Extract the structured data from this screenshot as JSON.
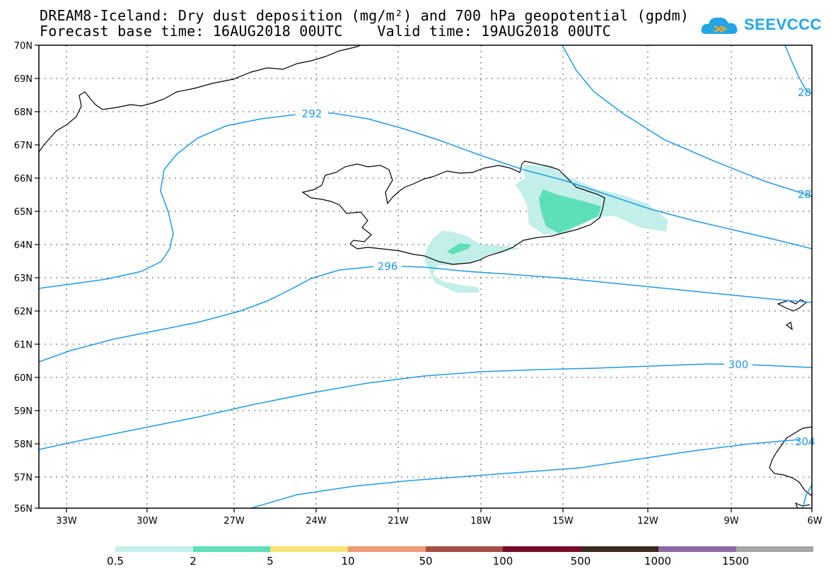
{
  "header": {
    "title_line1": "DREAM8-Iceland: Dry dust deposition (mg/m²) and 700 hPa geopotential (gpdm)",
    "title_line2": "Forecast base time: 16AUG2018 00UTC    Valid time: 19AUG2018 00UTC",
    "logo_text": "SEEVCCC"
  },
  "map": {
    "lat_labels": [
      "70N",
      "69N",
      "68N",
      "67N",
      "66N",
      "65N",
      "64N",
      "63N",
      "62N",
      "61N",
      "60N",
      "59N",
      "58N",
      "57N",
      "56N"
    ],
    "lon_labels": [
      "33W",
      "30W",
      "27W",
      "24W",
      "21W",
      "18W",
      "15W",
      "12W",
      "9W",
      "6W"
    ],
    "contour_labels": [
      "292",
      "296",
      "300",
      "28",
      "28",
      "304"
    ],
    "colors": {
      "contour": "#1e9be6",
      "dust_low": "#c2efe9",
      "dust_mid": "#5ddfb9"
    }
  },
  "colorbar": {
    "labels": [
      "0.5",
      "2",
      "5",
      "10",
      "50",
      "100",
      "500",
      "1000",
      "1500"
    ],
    "colors": [
      "#c4f0ea",
      "#5ddfb9",
      "#f9e472",
      "#ef9a74",
      "#a84e44",
      "#7a0b28",
      "#3a2a1c",
      "#8a6aa4",
      "#a5a5a5"
    ]
  }
}
